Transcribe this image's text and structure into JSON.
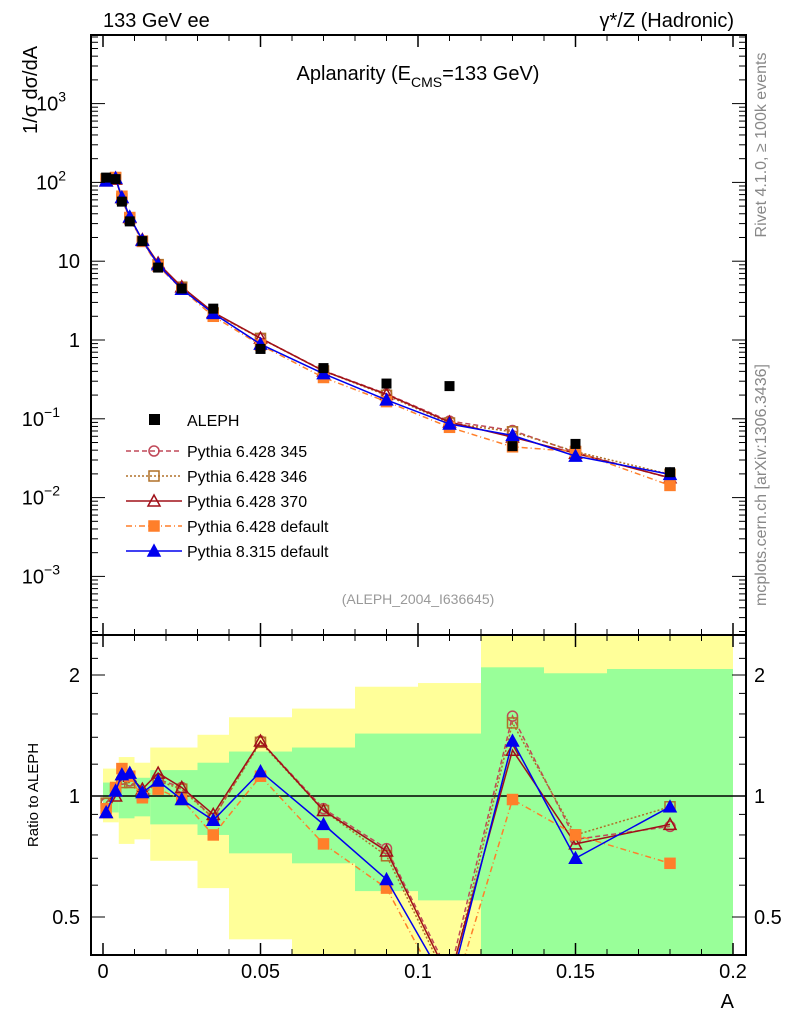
{
  "header": {
    "left": "133 GeV ee",
    "right": "γ*/Z (Hadronic)"
  },
  "side": {
    "rivet": "Rivet 4.1.0, ≥ 100k events",
    "mcplots": "mcplots.cern.ch [arXiv:1306.3436]"
  },
  "chart_data": {
    "type": "line",
    "title": "Aplanarity (E",
    "title_sub": "CMS",
    "title_end": "=133 GeV)",
    "analysis_id": "(ALEPH_2004_I636645)",
    "xlabel": "A",
    "ylabel": "1/σ  dσ/dA",
    "ratio_ylabel": "Ratio to ALEPH",
    "xlim": [
      0,
      0.2
    ],
    "ylim_log": [
      0.0002,
      7500
    ],
    "ratio_ylim_log": [
      0.4,
      2.5
    ],
    "x_ticks": [
      "0",
      "0.05",
      "0.1",
      "0.15",
      "0.2"
    ],
    "x_tick_values": [
      0,
      0.05,
      0.1,
      0.15,
      0.2
    ],
    "y_ticks": [
      {
        "base": "10",
        "exp": "3",
        "v": 1000
      },
      {
        "base": "10",
        "exp": "2",
        "v": 100
      },
      {
        "base": "10",
        "exp": "",
        "v": 10
      },
      {
        "base": "1",
        "exp": "",
        "v": 1
      },
      {
        "base": "10",
        "exp": "−1",
        "v": 0.1
      },
      {
        "base": "10",
        "exp": "−2",
        "v": 0.01
      },
      {
        "base": "10",
        "exp": "−3",
        "v": 0.001
      }
    ],
    "ratio_ticks": [
      {
        "label": "2",
        "v": 2
      },
      {
        "label": "1",
        "v": 1
      },
      {
        "label": "0.5",
        "v": 0.5
      }
    ],
    "x": [
      0.001,
      0.004,
      0.006,
      0.0085,
      0.0125,
      0.0175,
      0.025,
      0.035,
      0.05,
      0.07,
      0.09,
      0.11,
      0.13,
      0.15,
      0.18
    ],
    "data": {
      "name": "ALEPH",
      "values": [
        115,
        110,
        57,
        32,
        18,
        8.3,
        4.5,
        2.5,
        0.77,
        0.44,
        0.28,
        0.26,
        0.045,
        0.048,
        0.021
      ]
    },
    "series": [
      {
        "name": "Pythia 6.428 345",
        "color": "#c04858",
        "dash": "5,3",
        "marker": "open-circle",
        "ratio": [
          0.96,
          1.03,
          1.1,
          1.09,
          1.01,
          1.1,
          1.05,
          0.88,
          1.37,
          0.93,
          0.74,
          0.36,
          1.58,
          0.78,
          0.84
        ]
      },
      {
        "name": "Pythia 6.428 346",
        "color": "#b07028",
        "dash": "2,2",
        "marker": "open-square",
        "ratio": [
          0.96,
          1.04,
          1.08,
          1.08,
          1.0,
          1.09,
          1.04,
          0.88,
          1.36,
          0.92,
          0.71,
          0.34,
          1.52,
          0.8,
          0.94
        ]
      },
      {
        "name": "Pythia 6.428 370",
        "color": "#a01018",
        "dash": "",
        "marker": "open-triangle",
        "ratio": [
          0.91,
          1.0,
          1.13,
          1.12,
          1.04,
          1.14,
          1.05,
          0.9,
          1.37,
          0.92,
          0.73,
          0.35,
          1.3,
          0.76,
          0.85
        ]
      },
      {
        "name": "Pythia 6.428 default",
        "color": "#ff7f2a",
        "dash": "6,3,1,3",
        "marker": "filled-square",
        "ratio": [
          0.93,
          1.05,
          1.17,
          1.12,
          0.99,
          1.04,
          0.98,
          0.8,
          1.12,
          0.76,
          0.59,
          0.3,
          0.98,
          0.8,
          0.68
        ]
      },
      {
        "name": "Pythia 8.315 default",
        "color": "#0000ee",
        "dash": "",
        "marker": "filled-triangle",
        "ratio": [
          0.91,
          1.03,
          1.13,
          1.14,
          1.02,
          1.09,
          0.98,
          0.87,
          1.15,
          0.85,
          0.62,
          0.33,
          1.37,
          0.7,
          0.94
        ]
      }
    ],
    "uncertainty_bands": {
      "bin_edges": [
        0,
        0.005,
        0.01,
        0.015,
        0.02,
        0.03,
        0.04,
        0.06,
        0.08,
        0.1,
        0.12,
        0.14,
        0.16,
        0.2
      ],
      "yellow": [
        [
          0.86,
          1.17
        ],
        [
          0.76,
          1.25
        ],
        [
          0.78,
          1.21
        ],
        [
          0.69,
          1.32
        ],
        [
          0.69,
          1.32
        ],
        [
          0.59,
          1.42
        ],
        [
          0.44,
          1.57
        ],
        [
          0.3,
          1.65
        ],
        [
          0.3,
          1.87
        ],
        [
          0.3,
          1.91
        ],
        [
          0.3,
          3
        ],
        [
          0.3,
          3
        ],
        [
          0.3,
          3
        ]
      ],
      "green": [
        [
          0.91,
          1.08
        ],
        [
          0.88,
          1.11
        ],
        [
          0.89,
          1.11
        ],
        [
          0.85,
          1.16
        ],
        [
          0.85,
          1.16
        ],
        [
          0.8,
          1.21
        ],
        [
          0.72,
          1.29
        ],
        [
          0.68,
          1.32
        ],
        [
          0.58,
          1.43
        ],
        [
          0.55,
          1.43
        ],
        [
          0.3,
          2.09
        ],
        [
          0.3,
          2.02
        ],
        [
          0.3,
          2.07
        ]
      ],
      "yellow_color": "#ffff99",
      "green_color": "#99ff99"
    }
  }
}
